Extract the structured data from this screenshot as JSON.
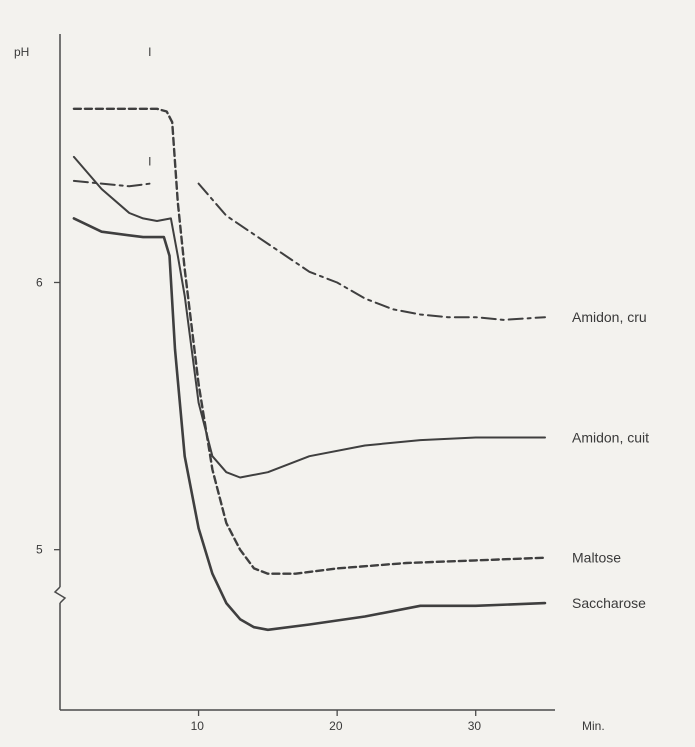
{
  "chart_data": {
    "type": "line",
    "title": "",
    "ylabel": "pH",
    "xlabel": "Min.",
    "xlim": [
      0,
      36
    ],
    "ylim": [
      4.4,
      6.9
    ],
    "x_ticks": [
      10,
      20,
      30
    ],
    "y_ticks": [
      5,
      6
    ],
    "series": [
      {
        "name": "Amidon, cru",
        "style": "dash-dot",
        "points": [
          [
            10,
            6.37
          ],
          [
            12,
            6.25
          ],
          [
            14,
            6.18
          ],
          [
            16,
            6.11
          ],
          [
            18,
            6.04
          ],
          [
            20,
            6.0
          ],
          [
            22,
            5.94
          ],
          [
            24,
            5.9
          ],
          [
            26,
            5.88
          ],
          [
            28,
            5.87
          ],
          [
            30,
            5.87
          ],
          [
            32,
            5.86
          ],
          [
            35,
            5.87
          ]
        ]
      },
      {
        "name": "Amidon, cuit",
        "style": "solid",
        "points": [
          [
            1,
            6.47
          ],
          [
            3,
            6.35
          ],
          [
            5,
            6.26
          ],
          [
            6,
            6.24
          ],
          [
            7,
            6.23
          ],
          [
            8,
            6.24
          ],
          [
            8.5,
            6.1
          ],
          [
            9,
            5.95
          ],
          [
            10,
            5.55
          ],
          [
            11,
            5.35
          ],
          [
            12,
            5.29
          ],
          [
            13,
            5.27
          ],
          [
            15,
            5.29
          ],
          [
            18,
            5.35
          ],
          [
            22,
            5.39
          ],
          [
            26,
            5.41
          ],
          [
            30,
            5.42
          ],
          [
            35,
            5.42
          ]
        ]
      },
      {
        "name": "Maltose",
        "style": "dashed",
        "points": [
          [
            1,
            6.65
          ],
          [
            7,
            6.65
          ],
          [
            7.7,
            6.64
          ],
          [
            8.1,
            6.6
          ],
          [
            8.5,
            6.3
          ],
          [
            9,
            6.05
          ],
          [
            10,
            5.62
          ],
          [
            11,
            5.3
          ],
          [
            12,
            5.1
          ],
          [
            13,
            5.0
          ],
          [
            14,
            4.93
          ],
          [
            15,
            4.91
          ],
          [
            17,
            4.91
          ],
          [
            20,
            4.93
          ],
          [
            25,
            4.95
          ],
          [
            30,
            4.96
          ],
          [
            35,
            4.97
          ]
        ]
      },
      {
        "name": "Saccharose",
        "style": "solid-heavy",
        "points": [
          [
            1,
            6.24
          ],
          [
            3,
            6.19
          ],
          [
            6,
            6.17
          ],
          [
            7.5,
            6.17
          ],
          [
            7.9,
            6.1
          ],
          [
            8.3,
            5.75
          ],
          [
            9,
            5.35
          ],
          [
            10,
            5.08
          ],
          [
            11,
            4.91
          ],
          [
            12,
            4.8
          ],
          [
            13,
            4.74
          ],
          [
            14,
            4.71
          ],
          [
            15,
            4.7
          ],
          [
            18,
            4.72
          ],
          [
            22,
            4.75
          ],
          [
            26,
            4.79
          ],
          [
            30,
            4.79
          ],
          [
            35,
            4.8
          ]
        ]
      },
      {
        "name": "",
        "style": "dash-dot",
        "points": [
          [
            1,
            6.38
          ],
          [
            3,
            6.37
          ],
          [
            5,
            6.36
          ],
          [
            6.5,
            6.37
          ]
        ]
      }
    ],
    "markers": [
      {
        "x": 6.5,
        "y": 6.37,
        "glyph": "I"
      },
      {
        "x": 6.5,
        "y": 6.78,
        "glyph": "I"
      }
    ],
    "y_axis_break": true,
    "grid": false,
    "legend": "inline-right"
  }
}
